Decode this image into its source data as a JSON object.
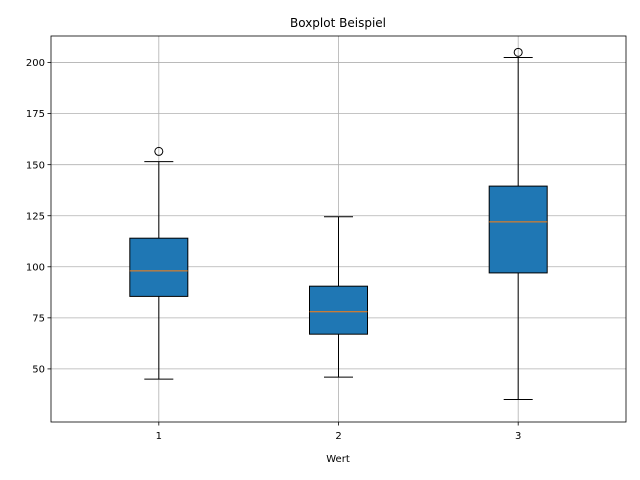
{
  "chart_data": {
    "type": "boxplot",
    "title": "Boxplot Beispiel",
    "xlabel": "Wert",
    "ylabel": "",
    "categories": [
      "1",
      "2",
      "3"
    ],
    "ylim": [
      24,
      213
    ],
    "y_ticks": [
      50,
      75,
      100,
      125,
      150,
      175,
      200
    ],
    "grid": true,
    "boxes": [
      {
        "label": "1",
        "whisker_low": 45,
        "q1": 85.5,
        "median": 98,
        "q3": 114,
        "whisker_high": 151.5,
        "outliers": [
          156.5
        ]
      },
      {
        "label": "2",
        "whisker_low": 46,
        "q1": 67,
        "median": 78,
        "q3": 90.5,
        "whisker_high": 124.5,
        "outliers": []
      },
      {
        "label": "3",
        "whisker_low": 35,
        "q1": 97,
        "median": 122,
        "q3": 139.5,
        "whisker_high": 202.5,
        "outliers": [
          205
        ]
      }
    ],
    "colors": {
      "box_fill": "#1f77b4",
      "median": "#ff7f0e",
      "grid": "#b0b0b0",
      "edge": "#000000"
    }
  }
}
